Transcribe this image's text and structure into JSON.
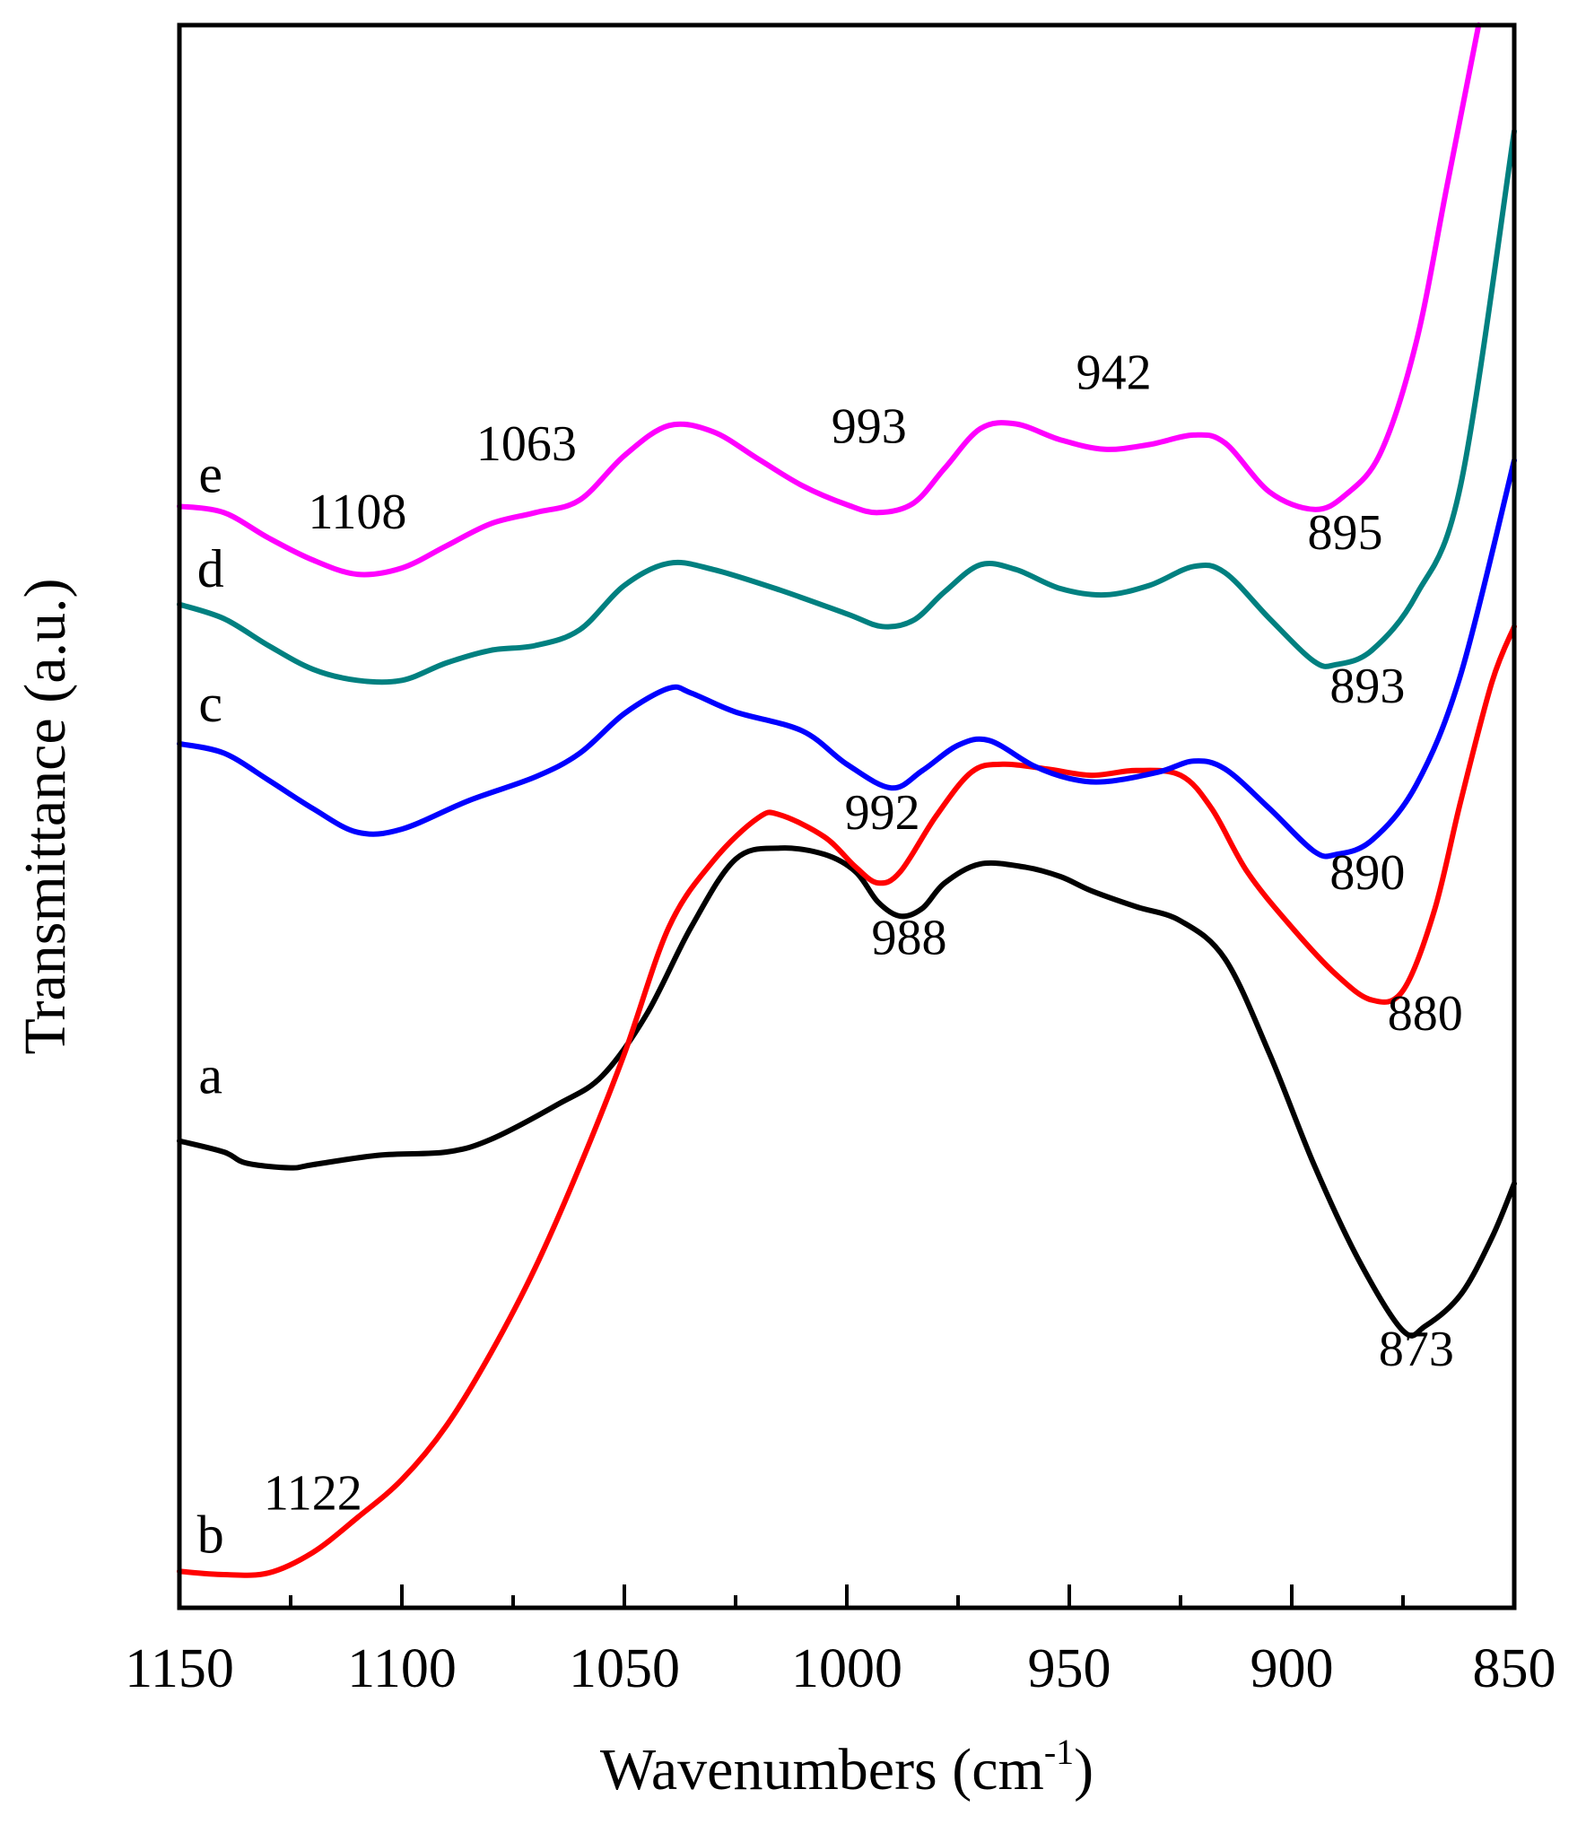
{
  "chart_data": {
    "type": "line",
    "title": "",
    "xlabel": "Wavenumbers (cm",
    "xlabel_sup": "-1",
    "xlabel_tail": ")",
    "ylabel": "Transmittance (a.u.)",
    "xlim": [
      1150,
      850
    ],
    "ylim": [
      0,
      100
    ],
    "x_reversed": true,
    "yticks_shown": false,
    "grid": false,
    "x_ticks": [
      1150,
      1100,
      1050,
      1000,
      950,
      900,
      850
    ],
    "x_minor_ticks": [
      1125,
      1075,
      1025,
      975,
      925,
      875
    ],
    "series": [
      {
        "name": "a",
        "color": "#000000",
        "label_pos": [
          1143,
          32.5
        ],
        "points": [
          [
            1150,
            29.5
          ],
          [
            1140,
            28.8
          ],
          [
            1135,
            28.1
          ],
          [
            1125,
            27.8
          ],
          [
            1120,
            28.0
          ],
          [
            1105,
            28.6
          ],
          [
            1090,
            28.8
          ],
          [
            1080,
            29.6
          ],
          [
            1065,
            31.8
          ],
          [
            1055,
            33.6
          ],
          [
            1045,
            37.5
          ],
          [
            1035,
            43.0
          ],
          [
            1025,
            47.3
          ],
          [
            1015,
            48.0
          ],
          [
            1005,
            47.6
          ],
          [
            998,
            46.5
          ],
          [
            993,
            44.6
          ],
          [
            988,
            43.7
          ],
          [
            983,
            44.2
          ],
          [
            978,
            45.8
          ],
          [
            970,
            47.0
          ],
          [
            960,
            46.8
          ],
          [
            952,
            46.2
          ],
          [
            945,
            45.3
          ],
          [
            935,
            44.3
          ],
          [
            925,
            43.4
          ],
          [
            915,
            41.0
          ],
          [
            905,
            35.0
          ],
          [
            895,
            28.0
          ],
          [
            885,
            22.0
          ],
          [
            875,
            17.5
          ],
          [
            870,
            17.8
          ],
          [
            862,
            19.8
          ],
          [
            855,
            23.4
          ],
          [
            850,
            26.8
          ]
        ]
      },
      {
        "name": "b",
        "color": "#ff0000",
        "label_pos": [
          1143,
          3.5
        ],
        "points": [
          [
            1150,
            2.3
          ],
          [
            1140,
            2.1
          ],
          [
            1130,
            2.2
          ],
          [
            1120,
            3.5
          ],
          [
            1110,
            5.7
          ],
          [
            1100,
            8.1
          ],
          [
            1090,
            11.5
          ],
          [
            1080,
            16.1
          ],
          [
            1070,
            21.5
          ],
          [
            1060,
            27.9
          ],
          [
            1050,
            35.0
          ],
          [
            1040,
            43.0
          ],
          [
            1030,
            47.2
          ],
          [
            1020,
            49.9
          ],
          [
            1015,
            50.1
          ],
          [
            1005,
            48.7
          ],
          [
            998,
            46.8
          ],
          [
            993,
            45.8
          ],
          [
            988,
            46.5
          ],
          [
            980,
            50.0
          ],
          [
            972,
            52.8
          ],
          [
            965,
            53.3
          ],
          [
            955,
            53.0
          ],
          [
            945,
            52.6
          ],
          [
            935,
            52.9
          ],
          [
            925,
            52.6
          ],
          [
            918,
            50.5
          ],
          [
            910,
            46.5
          ],
          [
            900,
            43.0
          ],
          [
            890,
            40.0
          ],
          [
            882,
            38.4
          ],
          [
            875,
            39.0
          ],
          [
            868,
            44.0
          ],
          [
            862,
            51.0
          ],
          [
            855,
            58.5
          ],
          [
            850,
            62.0
          ]
        ]
      },
      {
        "name": "c",
        "color": "#0000ff",
        "label_pos": [
          1143,
          56.0
        ],
        "points": [
          [
            1150,
            54.6
          ],
          [
            1140,
            54.0
          ],
          [
            1130,
            52.3
          ],
          [
            1120,
            50.5
          ],
          [
            1110,
            49.0
          ],
          [
            1100,
            49.2
          ],
          [
            1085,
            51.0
          ],
          [
            1070,
            52.5
          ],
          [
            1060,
            54.0
          ],
          [
            1050,
            56.5
          ],
          [
            1040,
            58.1
          ],
          [
            1035,
            57.8
          ],
          [
            1025,
            56.6
          ],
          [
            1010,
            55.4
          ],
          [
            1000,
            53.3
          ],
          [
            990,
            51.8
          ],
          [
            983,
            52.9
          ],
          [
            975,
            54.5
          ],
          [
            968,
            54.8
          ],
          [
            958,
            53.2
          ],
          [
            950,
            52.4
          ],
          [
            942,
            52.2
          ],
          [
            930,
            52.8
          ],
          [
            922,
            53.5
          ],
          [
            915,
            53.0
          ],
          [
            905,
            50.5
          ],
          [
            895,
            47.8
          ],
          [
            890,
            47.6
          ],
          [
            882,
            48.5
          ],
          [
            872,
            52.0
          ],
          [
            862,
            59.0
          ],
          [
            850,
            72.5
          ]
        ]
      },
      {
        "name": "d",
        "color": "#008080",
        "label_pos": [
          1143,
          64.5
        ],
        "points": [
          [
            1150,
            63.4
          ],
          [
            1140,
            62.5
          ],
          [
            1130,
            60.8
          ],
          [
            1120,
            59.3
          ],
          [
            1110,
            58.6
          ],
          [
            1100,
            58.6
          ],
          [
            1090,
            59.7
          ],
          [
            1080,
            60.5
          ],
          [
            1070,
            60.8
          ],
          [
            1060,
            61.8
          ],
          [
            1050,
            64.6
          ],
          [
            1040,
            66.0
          ],
          [
            1030,
            65.6
          ],
          [
            1015,
            64.3
          ],
          [
            1000,
            62.8
          ],
          [
            992,
            62.0
          ],
          [
            985,
            62.4
          ],
          [
            978,
            64.2
          ],
          [
            970,
            65.9
          ],
          [
            962,
            65.6
          ],
          [
            952,
            64.4
          ],
          [
            942,
            64.0
          ],
          [
            932,
            64.6
          ],
          [
            922,
            65.8
          ],
          [
            915,
            65.4
          ],
          [
            905,
            62.5
          ],
          [
            895,
            59.8
          ],
          [
            890,
            59.6
          ],
          [
            882,
            60.5
          ],
          [
            872,
            64.0
          ],
          [
            862,
            71.0
          ],
          [
            850,
            93.3
          ]
        ]
      },
      {
        "name": "e",
        "color": "#ff00ff",
        "label_pos": [
          1143,
          70.5
        ],
        "points": [
          [
            1150,
            69.6
          ],
          [
            1140,
            69.2
          ],
          [
            1130,
            67.6
          ],
          [
            1120,
            66.2
          ],
          [
            1110,
            65.3
          ],
          [
            1100,
            65.7
          ],
          [
            1090,
            67.1
          ],
          [
            1080,
            68.5
          ],
          [
            1070,
            69.2
          ],
          [
            1060,
            70.0
          ],
          [
            1050,
            72.8
          ],
          [
            1040,
            74.7
          ],
          [
            1030,
            74.3
          ],
          [
            1020,
            72.6
          ],
          [
            1010,
            70.9
          ],
          [
            1000,
            69.7
          ],
          [
            993,
            69.2
          ],
          [
            985,
            69.8
          ],
          [
            978,
            72.0
          ],
          [
            970,
            74.5
          ],
          [
            962,
            74.8
          ],
          [
            952,
            73.8
          ],
          [
            942,
            73.2
          ],
          [
            932,
            73.5
          ],
          [
            922,
            74.1
          ],
          [
            915,
            73.6
          ],
          [
            905,
            70.5
          ],
          [
            895,
            69.4
          ],
          [
            888,
            70.3
          ],
          [
            880,
            73.0
          ],
          [
            872,
            80.0
          ],
          [
            865,
            90.0
          ],
          [
            858,
            100.0
          ]
        ]
      }
    ],
    "peak_labels": [
      {
        "text": "1108",
        "x": 1110,
        "y": 68.2
      },
      {
        "text": "1063",
        "x": 1072,
        "y": 72.5
      },
      {
        "text": "993",
        "x": 995,
        "y": 73.6
      },
      {
        "text": "942",
        "x": 940,
        "y": 77.0
      },
      {
        "text": "895",
        "x": 888,
        "y": 66.9
      },
      {
        "text": "893",
        "x": 883,
        "y": 57.2
      },
      {
        "text": "890",
        "x": 883,
        "y": 45.4
      },
      {
        "text": "992",
        "x": 992,
        "y": 49.2
      },
      {
        "text": "988",
        "x": 986,
        "y": 41.3
      },
      {
        "text": "880",
        "x": 870,
        "y": 36.5
      },
      {
        "text": "873",
        "x": 872,
        "y": 15.3
      },
      {
        "text": "1122",
        "x": 1120,
        "y": 6.2
      }
    ]
  }
}
